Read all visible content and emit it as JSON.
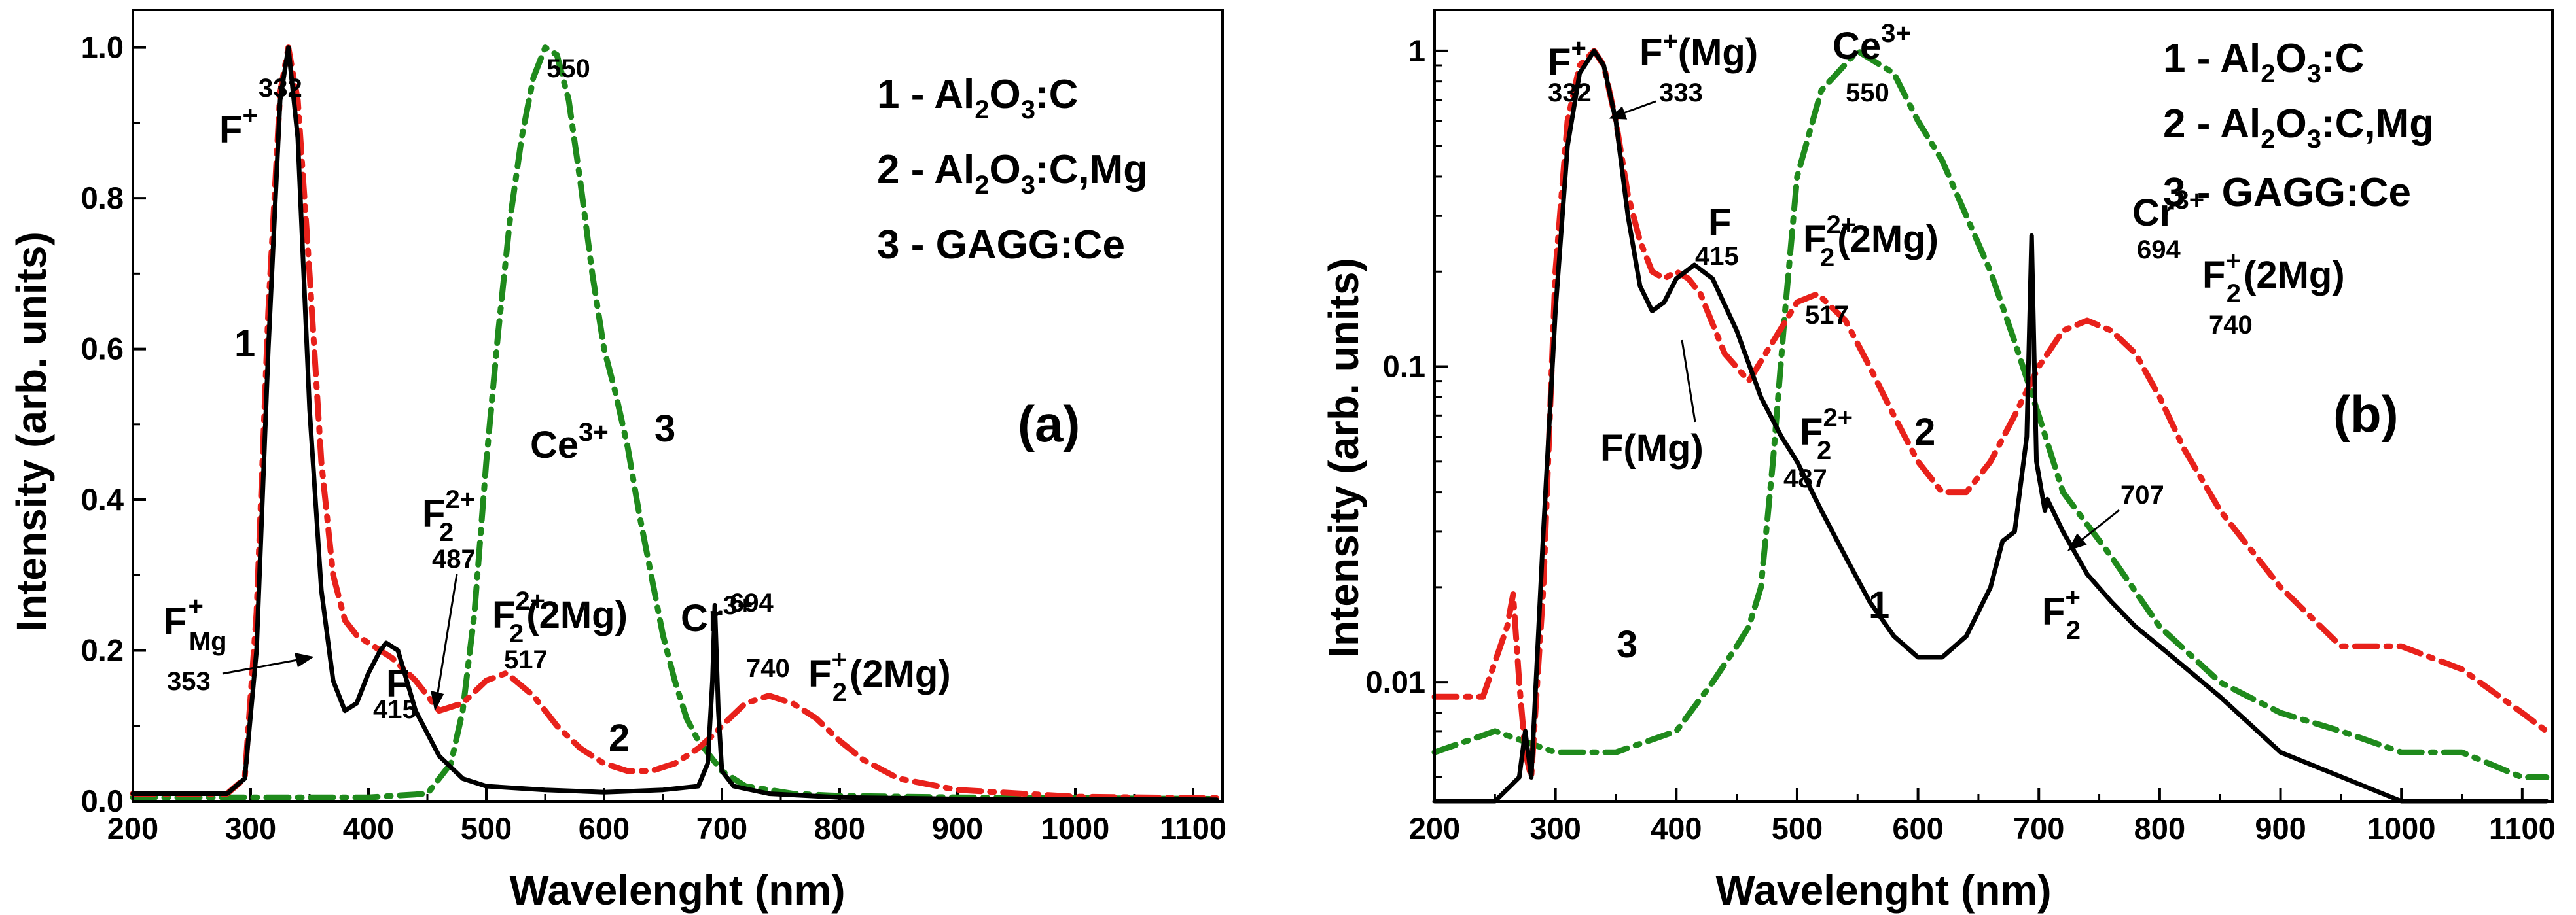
{
  "chart_data": [
    {
      "type": "line",
      "panel_label": "(a)",
      "xlabel": "Wavelenght (nm)",
      "ylabel": "Intensity (arb. units)",
      "xlim": [
        200,
        1125
      ],
      "ylim": [
        0,
        1.05
      ],
      "yscale": "linear",
      "xticks": [
        200,
        300,
        400,
        500,
        600,
        700,
        800,
        900,
        1000,
        1100
      ],
      "xtick_labels": [
        "200",
        "300",
        "400",
        "500",
        "600",
        "700",
        "800",
        "900",
        "1000",
        "1100"
      ],
      "yticks": [
        0,
        0.2,
        0.4,
        0.6,
        0.8,
        1.0
      ],
      "ytick_labels": [
        "0.0",
        "0.2",
        "0.4",
        "0.6",
        "0.8",
        "1.0"
      ],
      "legend": [
        "1 - Al2O3:C",
        "2 - Al2O3:C,Mg",
        "3 - GAGG:Ce"
      ],
      "series": [
        {
          "name": "1 - Al2O3:C",
          "color": "#000000",
          "style": "solid",
          "x": [
            200,
            280,
            295,
            305,
            315,
            325,
            332,
            340,
            350,
            360,
            370,
            380,
            390,
            400,
            410,
            415,
            425,
            440,
            460,
            480,
            500,
            550,
            600,
            650,
            680,
            688,
            692,
            694,
            697,
            700,
            710,
            740,
            800,
            900,
            1000,
            1120
          ],
          "y": [
            0.01,
            0.01,
            0.03,
            0.2,
            0.6,
            0.93,
            1.0,
            0.88,
            0.52,
            0.28,
            0.16,
            0.12,
            0.13,
            0.17,
            0.2,
            0.21,
            0.2,
            0.12,
            0.06,
            0.03,
            0.02,
            0.015,
            0.012,
            0.015,
            0.02,
            0.05,
            0.16,
            0.26,
            0.12,
            0.04,
            0.02,
            0.01,
            0.005,
            0.003,
            0.003,
            0.002
          ]
        },
        {
          "name": "2 - Al2O3:C,Mg",
          "color": "#e8211b",
          "style": "dashdot",
          "x": [
            200,
            280,
            295,
            305,
            315,
            325,
            332,
            340,
            350,
            360,
            370,
            380,
            390,
            400,
            410,
            420,
            440,
            460,
            480,
            500,
            517,
            540,
            560,
            580,
            600,
            620,
            640,
            660,
            680,
            694,
            700,
            720,
            740,
            760,
            780,
            800,
            820,
            850,
            900,
            1000,
            1120
          ],
          "y": [
            0.01,
            0.01,
            0.03,
            0.25,
            0.65,
            0.94,
            1.0,
            0.93,
            0.7,
            0.45,
            0.3,
            0.24,
            0.22,
            0.21,
            0.2,
            0.19,
            0.16,
            0.12,
            0.13,
            0.16,
            0.17,
            0.14,
            0.1,
            0.07,
            0.05,
            0.04,
            0.04,
            0.05,
            0.07,
            0.09,
            0.1,
            0.13,
            0.14,
            0.13,
            0.11,
            0.08,
            0.055,
            0.03,
            0.015,
            0.006,
            0.004
          ]
        },
        {
          "name": "3 - GAGG:Ce",
          "color": "#1f8a1c",
          "style": "dashdot",
          "x": [
            200,
            300,
            400,
            450,
            470,
            480,
            490,
            500,
            510,
            520,
            530,
            540,
            550,
            560,
            570,
            580,
            590,
            600,
            610,
            620,
            630,
            640,
            650,
            660,
            670,
            680,
            690,
            700,
            720,
            760,
            800,
            900,
            1000,
            1120
          ],
          "y": [
            0.005,
            0.005,
            0.005,
            0.01,
            0.05,
            0.12,
            0.25,
            0.45,
            0.62,
            0.77,
            0.88,
            0.96,
            1.0,
            0.99,
            0.93,
            0.82,
            0.7,
            0.6,
            0.54,
            0.47,
            0.38,
            0.3,
            0.22,
            0.16,
            0.11,
            0.08,
            0.06,
            0.04,
            0.02,
            0.01,
            0.007,
            0.005,
            0.004,
            0.003
          ]
        }
      ],
      "annotations": {
        "top_332": "332",
        "top_550": "550",
        "f_plus_main": "F",
        "f_plus_sup": "+",
        "f_mg_main": "F",
        "f_mg_sup": "+",
        "f_mg_sub": "Mg",
        "v353": "353",
        "f415_main": "F",
        "v415": "415",
        "f2_487_main": "F",
        "f2_487_sub": "2",
        "f2_487_sup": "2+",
        "v487": "487",
        "f2_517_main": "F",
        "f2_517_sub": "2",
        "f2_517_sup": "2+",
        "f2_517_tail": "(2Mg)",
        "v517": "517",
        "ce_main": "Ce",
        "ce_sup": "3+",
        "ce_num": "3",
        "cr_main": "Cr",
        "cr_sup": "3+",
        "v694": "694",
        "v740": "740",
        "f2p_main": "F",
        "f2p_sub": "2",
        "f2p_sup": "+",
        "f2p_tail": "(2Mg)",
        "curve1": "1",
        "curve2": "2"
      }
    },
    {
      "type": "line",
      "panel_label": "(b)",
      "xlabel": "Wavelenght (nm)",
      "ylabel": "Intensity (arb. units)",
      "xlim": [
        200,
        1125
      ],
      "ylim": [
        0.0042,
        1.35
      ],
      "yscale": "log",
      "xticks": [
        200,
        300,
        400,
        500,
        600,
        700,
        800,
        900,
        1000,
        1100
      ],
      "xtick_labels": [
        "200",
        "300",
        "400",
        "500",
        "600",
        "700",
        "800",
        "900",
        "1000",
        "1100"
      ],
      "yticks": [
        0.01,
        0.1,
        1
      ],
      "ytick_labels": [
        "0.01",
        "0.1",
        "1"
      ],
      "legend": [
        "1 - Al2O3:C",
        "2 - Al2O3:C,Mg",
        "3 - GAGG:Ce"
      ],
      "series": [
        {
          "name": "1 - Al2O3:C",
          "color": "#000000",
          "style": "solid",
          "x": [
            200,
            250,
            270,
            275,
            280,
            290,
            300,
            310,
            320,
            332,
            340,
            350,
            360,
            370,
            380,
            390,
            400,
            415,
            430,
            450,
            470,
            487,
            500,
            520,
            540,
            560,
            580,
            600,
            620,
            640,
            660,
            670,
            680,
            690,
            694,
            698,
            705,
            707,
            720,
            740,
            760,
            780,
            800,
            850,
            900,
            1000,
            1120
          ],
          "y": [
            0.004,
            0.004,
            0.005,
            0.007,
            0.005,
            0.03,
            0.15,
            0.5,
            0.85,
            1.0,
            0.9,
            0.6,
            0.3,
            0.18,
            0.15,
            0.16,
            0.19,
            0.21,
            0.19,
            0.13,
            0.08,
            0.06,
            0.05,
            0.035,
            0.025,
            0.018,
            0.014,
            0.012,
            0.012,
            0.014,
            0.02,
            0.028,
            0.03,
            0.06,
            0.26,
            0.05,
            0.035,
            0.038,
            0.03,
            0.022,
            0.018,
            0.015,
            0.013,
            0.009,
            0.006,
            0.004,
            0.004
          ]
        },
        {
          "name": "2 - Al2O3:C,Mg",
          "color": "#e8211b",
          "style": "dashdot",
          "x": [
            200,
            240,
            260,
            265,
            270,
            275,
            280,
            290,
            300,
            310,
            320,
            332,
            340,
            350,
            360,
            370,
            380,
            390,
            400,
            410,
            420,
            440,
            460,
            480,
            500,
            517,
            540,
            560,
            580,
            600,
            620,
            640,
            660,
            680,
            694,
            700,
            720,
            740,
            760,
            780,
            800,
            820,
            850,
            900,
            950,
            1000,
            1050,
            1100,
            1120
          ],
          "y": [
            0.009,
            0.009,
            0.015,
            0.019,
            0.01,
            0.006,
            0.005,
            0.02,
            0.2,
            0.6,
            0.9,
            1.0,
            0.9,
            0.6,
            0.35,
            0.25,
            0.2,
            0.19,
            0.2,
            0.19,
            0.17,
            0.11,
            0.09,
            0.12,
            0.16,
            0.17,
            0.14,
            0.1,
            0.07,
            0.05,
            0.04,
            0.04,
            0.05,
            0.07,
            0.09,
            0.1,
            0.13,
            0.14,
            0.13,
            0.11,
            0.08,
            0.055,
            0.035,
            0.02,
            0.013,
            0.013,
            0.011,
            0.008,
            0.007
          ]
        },
        {
          "name": "3 - GAGG:Ce",
          "color": "#1f8a1c",
          "style": "dashdot",
          "x": [
            200,
            250,
            300,
            350,
            400,
            430,
            450,
            460,
            470,
            480,
            490,
            500,
            520,
            550,
            580,
            600,
            620,
            640,
            660,
            680,
            700,
            720,
            760,
            800,
            850,
            900,
            950,
            1000,
            1050,
            1100,
            1120
          ],
          "y": [
            0.006,
            0.007,
            0.006,
            0.006,
            0.007,
            0.01,
            0.013,
            0.015,
            0.02,
            0.05,
            0.15,
            0.4,
            0.75,
            1.0,
            0.85,
            0.6,
            0.45,
            0.3,
            0.2,
            0.12,
            0.07,
            0.04,
            0.025,
            0.015,
            0.01,
            0.008,
            0.007,
            0.006,
            0.006,
            0.005,
            0.005
          ]
        }
      ],
      "annotations": {
        "f_plus_main": "F",
        "f_plus_sup": "+",
        "v332": "332",
        "fmg_main": "F",
        "fmg_sup": "+",
        "fmg_tail": "(Mg)",
        "v333": "333",
        "ce_main": "Ce",
        "ce_sup": "3+",
        "v550": "550",
        "f415_main": "F",
        "v415": "415",
        "f2_517_main": "F",
        "f2_517_sub": "2",
        "f2_517_sup": "2+",
        "f2_517_tail": "(2Mg)",
        "v517": "517",
        "cr_main": "Cr",
        "cr_sup": "3+",
        "v694": "694",
        "f2p_main": "F",
        "f2p_sub": "2",
        "f2p_sup": "+",
        "f2p_tail": "(2Mg)",
        "v740": "740",
        "fmg_label": "F(Mg)",
        "f2_487_main": "F",
        "f2_487_sub": "2",
        "f2_487_sup": "2+",
        "v487": "487",
        "v707": "707",
        "f2p2_main": "F",
        "f2p2_sub": "2",
        "f2p2_sup": "+",
        "curve1": "1",
        "curve2": "2",
        "curve3": "3"
      }
    }
  ]
}
